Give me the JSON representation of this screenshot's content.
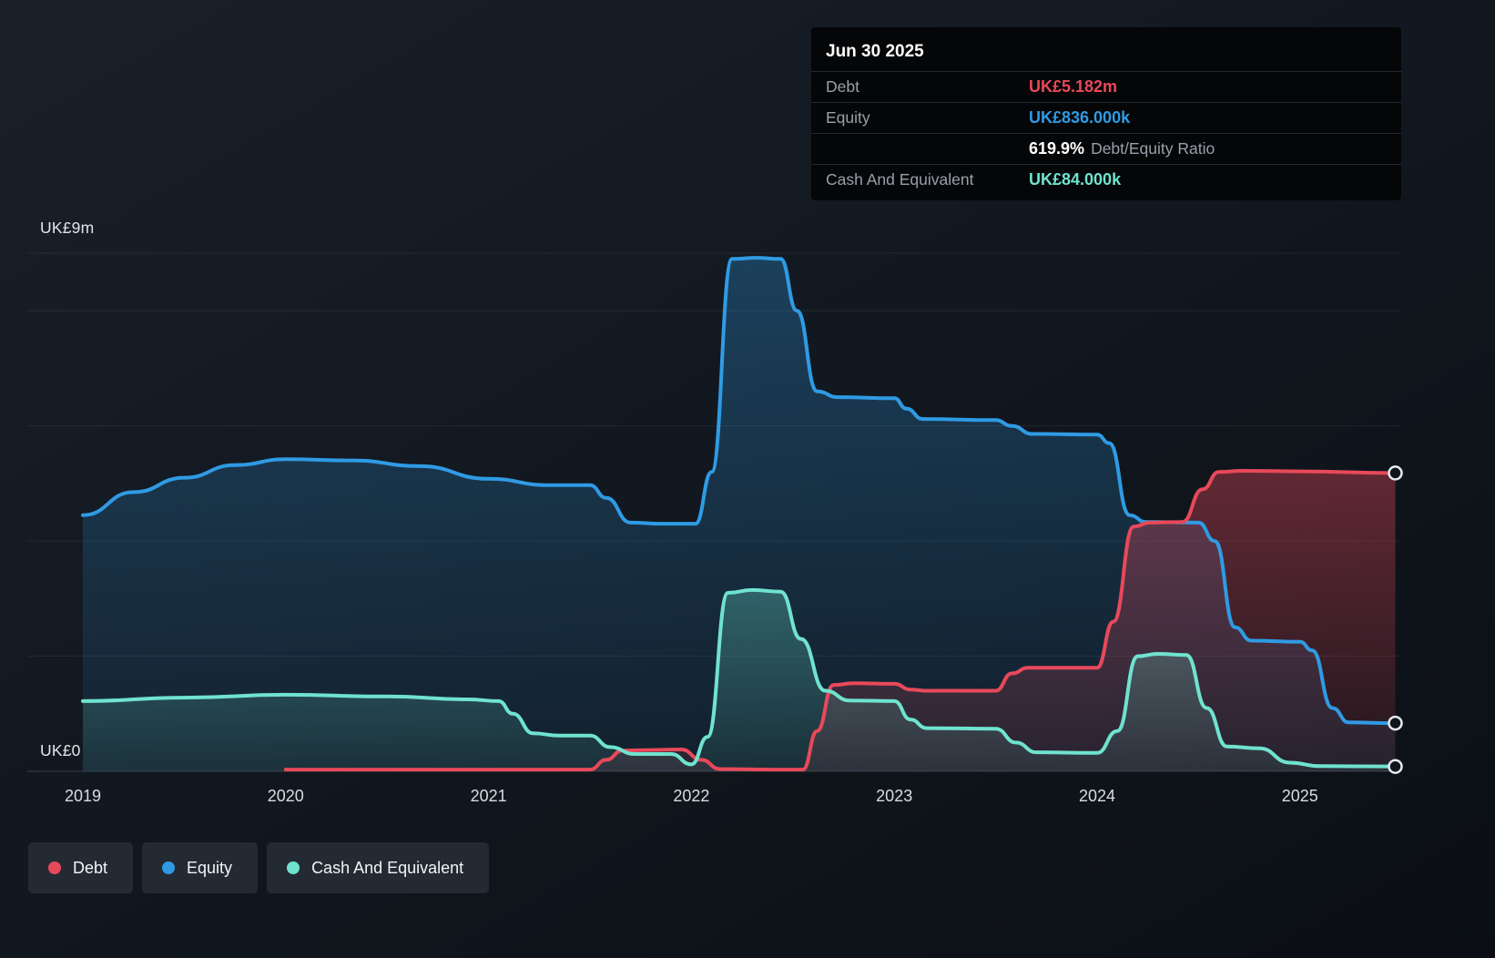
{
  "colors": {
    "background": "#10151c",
    "debt": "#e8495a",
    "equity": "#2f9be4",
    "cash": "#6fe3cf",
    "grid": "rgba(255,255,255,0.07)",
    "axis_line": "rgba(255,255,255,0.16)",
    "axis_text": "#d9dde2",
    "tooltip_bg": "#050608",
    "tooltip_label": "#98a0a9",
    "legend_bg": "#242a33",
    "marker_ring": "#e6ebf0"
  },
  "tooltip": {
    "title": "Jun 30 2025",
    "rows": [
      {
        "label": "Debt",
        "value": "UK£5.182m",
        "series": "debt"
      },
      {
        "label": "Equity",
        "value": "UK£836.000k",
        "series": "equity"
      },
      {
        "label": "",
        "value": "619.9%",
        "suffix": "Debt/Equity Ratio",
        "series": "ratio"
      },
      {
        "label": "Cash And Equivalent",
        "value": "UK£84.000k",
        "series": "cash"
      }
    ]
  },
  "legend": {
    "items": [
      {
        "key": "debt",
        "label": "Debt",
        "color": "#e8495a"
      },
      {
        "key": "equity",
        "label": "Equity",
        "color": "#2f9be4"
      },
      {
        "key": "cash",
        "label": "Cash And Equivalent",
        "color": "#6fe3cf"
      }
    ]
  },
  "chart_data": {
    "type": "area",
    "unit": "UK£m",
    "legend_position": "bottom-left",
    "x_axis": {
      "ticks": [
        2019,
        2020,
        2021,
        2022,
        2023,
        2024,
        2025
      ],
      "domain": [
        2019,
        2025.47
      ]
    },
    "y_axis": {
      "domain": [
        0,
        9
      ],
      "gridlines": [
        0,
        2,
        4,
        6,
        8,
        9
      ],
      "top_label": "UK£9m",
      "bottom_label": "UK£0"
    },
    "series": [
      {
        "key": "equity",
        "name": "Equity",
        "color": "#2f9be4",
        "end_value": 0.836,
        "points": [
          [
            2019.0,
            4.45
          ],
          [
            2019.25,
            4.85
          ],
          [
            2019.5,
            5.1
          ],
          [
            2019.75,
            5.32
          ],
          [
            2020.0,
            5.42
          ],
          [
            2020.33,
            5.4
          ],
          [
            2020.66,
            5.3
          ],
          [
            2021.0,
            5.08
          ],
          [
            2021.3,
            4.97
          ],
          [
            2021.5,
            4.97
          ],
          [
            2021.58,
            4.75
          ],
          [
            2021.7,
            4.32
          ],
          [
            2021.85,
            4.3
          ],
          [
            2022.02,
            4.3
          ],
          [
            2022.1,
            5.2
          ],
          [
            2022.2,
            8.9
          ],
          [
            2022.32,
            8.92
          ],
          [
            2022.44,
            8.9
          ],
          [
            2022.52,
            8.0
          ],
          [
            2022.62,
            6.6
          ],
          [
            2022.72,
            6.5
          ],
          [
            2023.0,
            6.48
          ],
          [
            2023.06,
            6.3
          ],
          [
            2023.14,
            6.12
          ],
          [
            2023.5,
            6.1
          ],
          [
            2023.58,
            6.0
          ],
          [
            2023.68,
            5.86
          ],
          [
            2024.0,
            5.85
          ],
          [
            2024.06,
            5.7
          ],
          [
            2024.16,
            4.45
          ],
          [
            2024.24,
            4.33
          ],
          [
            2024.5,
            4.32
          ],
          [
            2024.58,
            4.0
          ],
          [
            2024.68,
            2.5
          ],
          [
            2024.76,
            2.27
          ],
          [
            2025.0,
            2.25
          ],
          [
            2025.06,
            2.1
          ],
          [
            2025.16,
            1.1
          ],
          [
            2025.24,
            0.85
          ],
          [
            2025.47,
            0.836
          ]
        ]
      },
      {
        "key": "debt",
        "name": "Debt",
        "color": "#e8495a",
        "end_value": 5.182,
        "points": [
          [
            2020.0,
            0.03
          ],
          [
            2020.5,
            0.03
          ],
          [
            2021.0,
            0.03
          ],
          [
            2021.5,
            0.03
          ],
          [
            2021.58,
            0.2
          ],
          [
            2021.66,
            0.36
          ],
          [
            2021.8,
            0.37
          ],
          [
            2021.95,
            0.38
          ],
          [
            2022.05,
            0.2
          ],
          [
            2022.14,
            0.04
          ],
          [
            2022.4,
            0.03
          ],
          [
            2022.55,
            0.03
          ],
          [
            2022.62,
            0.7
          ],
          [
            2022.7,
            1.5
          ],
          [
            2022.8,
            1.53
          ],
          [
            2023.0,
            1.52
          ],
          [
            2023.08,
            1.42
          ],
          [
            2023.16,
            1.4
          ],
          [
            2023.5,
            1.4
          ],
          [
            2023.58,
            1.7
          ],
          [
            2023.66,
            1.8
          ],
          [
            2024.0,
            1.8
          ],
          [
            2024.08,
            2.6
          ],
          [
            2024.18,
            4.25
          ],
          [
            2024.26,
            4.32
          ],
          [
            2024.42,
            4.33
          ],
          [
            2024.52,
            4.9
          ],
          [
            2024.6,
            5.2
          ],
          [
            2024.72,
            5.22
          ],
          [
            2025.0,
            5.21
          ],
          [
            2025.47,
            5.182
          ]
        ]
      },
      {
        "key": "cash",
        "name": "Cash And Equivalent",
        "color": "#6fe3cf",
        "end_value": 0.084,
        "points": [
          [
            2019.0,
            1.22
          ],
          [
            2019.5,
            1.28
          ],
          [
            2020.0,
            1.33
          ],
          [
            2020.5,
            1.3
          ],
          [
            2020.9,
            1.25
          ],
          [
            2021.05,
            1.22
          ],
          [
            2021.12,
            1.0
          ],
          [
            2021.22,
            0.66
          ],
          [
            2021.35,
            0.62
          ],
          [
            2021.5,
            0.62
          ],
          [
            2021.6,
            0.42
          ],
          [
            2021.72,
            0.3
          ],
          [
            2021.9,
            0.3
          ],
          [
            2022.0,
            0.12
          ],
          [
            2022.08,
            0.6
          ],
          [
            2022.18,
            3.1
          ],
          [
            2022.3,
            3.15
          ],
          [
            2022.44,
            3.12
          ],
          [
            2022.54,
            2.3
          ],
          [
            2022.66,
            1.4
          ],
          [
            2022.78,
            1.23
          ],
          [
            2023.0,
            1.22
          ],
          [
            2023.08,
            0.9
          ],
          [
            2023.16,
            0.75
          ],
          [
            2023.5,
            0.74
          ],
          [
            2023.6,
            0.5
          ],
          [
            2023.7,
            0.33
          ],
          [
            2024.0,
            0.32
          ],
          [
            2024.1,
            0.7
          ],
          [
            2024.2,
            2.0
          ],
          [
            2024.3,
            2.04
          ],
          [
            2024.44,
            2.02
          ],
          [
            2024.54,
            1.1
          ],
          [
            2024.64,
            0.43
          ],
          [
            2024.8,
            0.4
          ],
          [
            2024.95,
            0.15
          ],
          [
            2025.1,
            0.09
          ],
          [
            2025.47,
            0.084
          ]
        ]
      }
    ]
  }
}
